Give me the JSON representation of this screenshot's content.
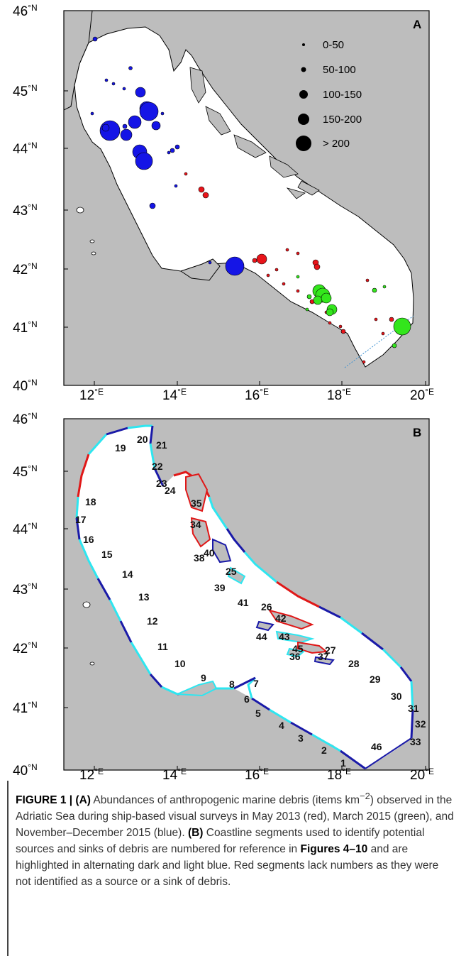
{
  "panel_a": {
    "letter": "A",
    "lat_ticks": [
      "46",
      "45",
      "44",
      "43",
      "42",
      "41",
      "40"
    ],
    "lon_ticks": [
      "12",
      "14",
      "16",
      "18",
      "20"
    ],
    "legend": [
      "0-50",
      "50-100",
      "100-150",
      "150-200",
      "> 200"
    ]
  },
  "panel_b": {
    "letter": "B",
    "lat_ticks": [
      "46",
      "45",
      "44",
      "43",
      "42",
      "41",
      "40"
    ],
    "lon_ticks": [
      "12",
      "14",
      "16",
      "18",
      "20"
    ],
    "segment_labels": [
      "1",
      "2",
      "3",
      "4",
      "5",
      "6",
      "7",
      "8",
      "9",
      "10",
      "11",
      "12",
      "13",
      "14",
      "15",
      "16",
      "17",
      "18",
      "19",
      "20",
      "21",
      "22",
      "23",
      "24",
      "25",
      "26",
      "27",
      "28",
      "29",
      "30",
      "31",
      "32",
      "33",
      "34",
      "35",
      "36",
      "37",
      "38",
      "39",
      "40",
      "41",
      "42",
      "43",
      "44",
      "45",
      "46"
    ]
  },
  "units": {
    "lat": "°N",
    "lon": "°E"
  },
  "colors": {
    "land": "#bdbdbd",
    "sea": "#ffffff",
    "may_2013": "#e8141a",
    "mar_2015": "#33e61c",
    "nov_dec_2015": "#1515e6",
    "segment_dark": "#1a1aa8",
    "segment_light": "#2ee6f0",
    "segment_red": "#e01818"
  },
  "caption": {
    "figure_label": "FIGURE 1 | (A)",
    "text_1": " Abundances of anthropogenic marine debris (items km",
    "superscript": "−2",
    "text_2": ") observed in the Adriatic Sea during ship-based visual surveys in May 2013 (red), March 2015 (green), and November–December 2015 (blue). ",
    "part_b": "(B)",
    "text_3": " Coastline segments used to identify potential sources and sinks of debris are numbered for reference in ",
    "figures_ref": "Figures 4–10",
    "text_4": " and are highlighted in alternating dark and light blue. Red segments lack numbers as they were not identified as a source or a sink of debris."
  }
}
